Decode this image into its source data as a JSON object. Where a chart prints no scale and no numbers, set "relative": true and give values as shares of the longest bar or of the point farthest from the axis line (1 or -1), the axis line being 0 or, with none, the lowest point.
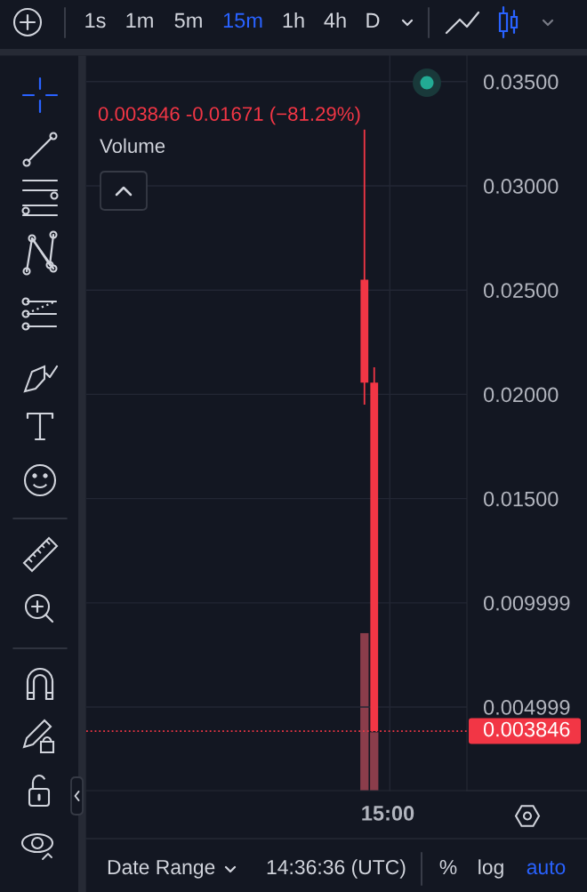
{
  "chart_data": [
    {
      "type": "candlestick",
      "categories": [
        null,
        null,
        null,
        null,
        null,
        null,
        null,
        null,
        null,
        null,
        null,
        null,
        null,
        null,
        null,
        null,
        null,
        null,
        null,
        null,
        null,
        null,
        null,
        null,
        null,
        null,
        null,
        null,
        null,
        null,
        null,
        null,
        null,
        null,
        null,
        null,
        null,
        null,
        null
      ],
      "ohlc": [
        null,
        null,
        null,
        null,
        null,
        null,
        null,
        null,
        null,
        null,
        null,
        null,
        null,
        null,
        null,
        null,
        null,
        null,
        null,
        null,
        null,
        null,
        null,
        null,
        null,
        null,
        null,
        null,
        [
          0.0255,
          0.0327,
          0.0195,
          0.02056
        ],
        [
          0.02056,
          0.0213,
          0.003846,
          0.003846
        ],
        null,
        null,
        null,
        null,
        null,
        null,
        null,
        null,
        null
      ],
      "color": "#f23645",
      "ylim": [
        0.00099,
        0.03625
      ],
      "yticks": [
        {
          "value": 0.035,
          "label": "0.03500"
        },
        {
          "value": 0.03,
          "label": "0.03000"
        },
        {
          "value": 0.025,
          "label": "0.02500"
        },
        {
          "value": 0.02,
          "label": "0.02000"
        },
        {
          "value": 0.015,
          "label": "0.01500"
        },
        {
          "value": 0.009999,
          "label": "0.009999"
        },
        {
          "value": 0.004999,
          "label": "0.004999"
        }
      ],
      "grid": true,
      "ref_lines": [
        {
          "axis": "y",
          "value": 0.003846,
          "label": "0.003846",
          "color": "#f23645",
          "line_style": "dotted"
        }
      ],
      "annotations": [
        "0.003846 -0.01671 (−81.29%)",
        "1s",
        "1m",
        "5m",
        "15m",
        "1h",
        "4h",
        "D",
        "Date Range",
        "14:36:36 (UTC)",
        "%",
        "log",
        "auto",
        "15:00",
        "Volume"
      ]
    },
    {
      "type": "bar",
      "categories": [
        null,
        null,
        null,
        null,
        null,
        null,
        null,
        null,
        null,
        null,
        null,
        null,
        null,
        null,
        null,
        null,
        null,
        null,
        null,
        null,
        null,
        null,
        null,
        null,
        null,
        null,
        null,
        null,
        null,
        null,
        null,
        null,
        null,
        null,
        null,
        null,
        null,
        null,
        null
      ],
      "values": [
        null,
        null,
        null,
        null,
        null,
        null,
        null,
        null,
        null,
        null,
        null,
        null,
        null,
        null,
        null,
        null,
        null,
        null,
        null,
        null,
        null,
        null,
        null,
        null,
        null,
        null,
        null,
        null,
        1,
        0.37,
        null,
        null,
        null,
        null,
        null,
        null,
        null,
        null,
        null
      ],
      "color": "#8b3d4b",
      "relative": true
    }
  ]
}
